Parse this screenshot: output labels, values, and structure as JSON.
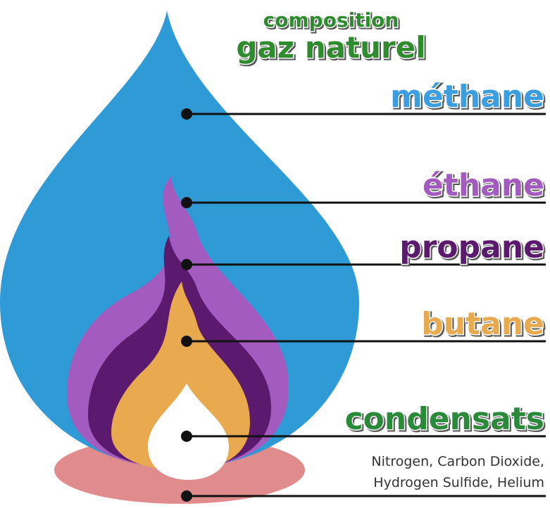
{
  "title": {
    "line1": "composition",
    "line2": "gaz naturel"
  },
  "layers": [
    {
      "label": "méthane"
    },
    {
      "label": "éthane"
    },
    {
      "label": "propane"
    },
    {
      "label": "butane"
    },
    {
      "label": "condensats"
    }
  ],
  "note": [
    "Nitrogen, Carbon Dioxide,",
    "Hydrogen Sulfide, Helium"
  ]
}
